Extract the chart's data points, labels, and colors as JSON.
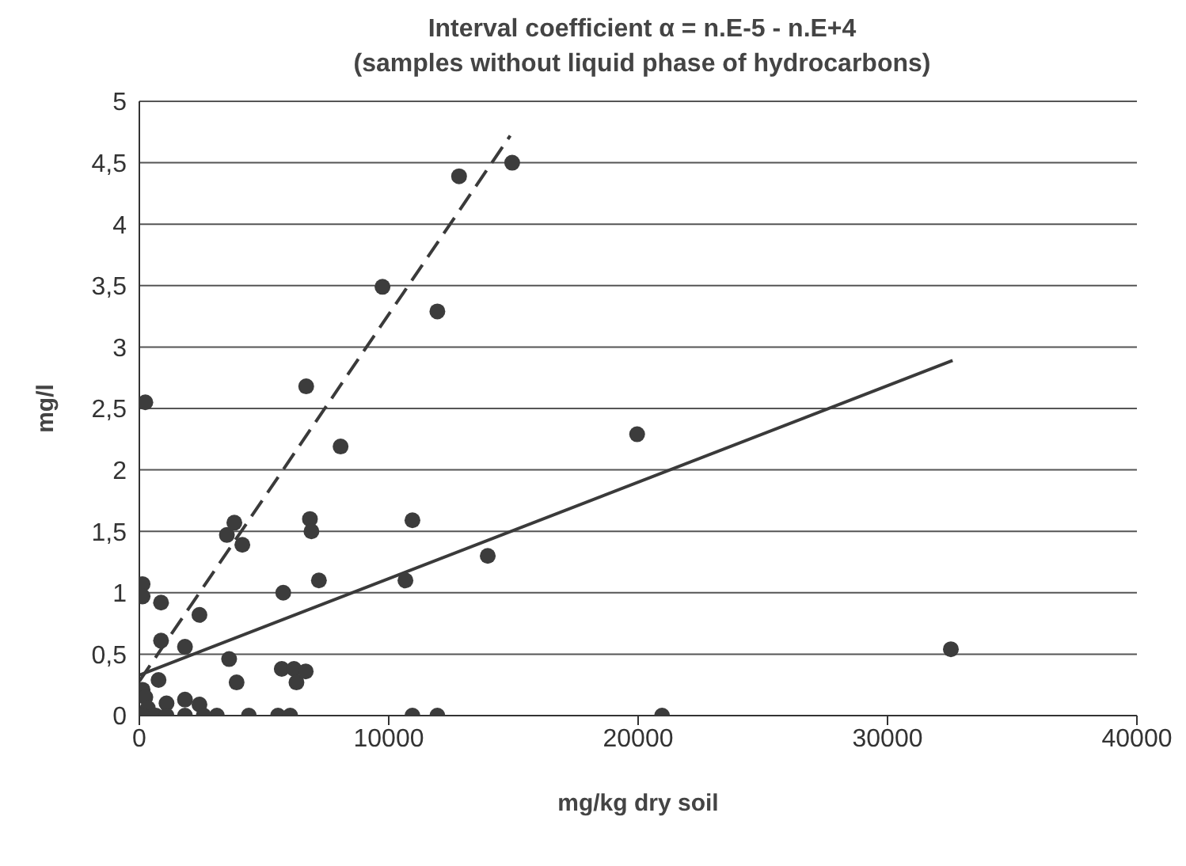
{
  "chart_data": {
    "type": "scatter",
    "title": "Interval coefficient α = n.E-5  - n.E+4",
    "subtitle": "(samples without liquid phase of hydrocarbons)",
    "xlabel": "mg/kg dry soil",
    "ylabel": "mg/l",
    "xlim": [
      0,
      40000
    ],
    "xticks": [
      0,
      10000,
      20000,
      30000,
      40000
    ],
    "ylim": [
      0,
      5
    ],
    "yticks": [
      0,
      {
        "value": 0.5,
        "label": "0,5"
      },
      1,
      {
        "value": 1.5,
        "label": "1,5"
      },
      2,
      {
        "value": 2.5,
        "label": "2,5"
      },
      3,
      {
        "value": 3.5,
        "label": "3,5"
      },
      4,
      {
        "value": 4.5,
        "label": "4,5"
      },
      5
    ],
    "grid": "y",
    "marker": "circle",
    "series": [
      {
        "color": "#3c3c3c",
        "x": [
          240,
          130,
          130,
          870,
          870,
          770,
          1830,
          2410,
          3600,
          3900,
          3510,
          3810,
          4130,
          5770,
          5710,
          6200,
          6300,
          6670,
          6690,
          6840,
          6900,
          7200,
          8070,
          9750,
          11950,
          12820,
          14950,
          10950,
          10670,
          13970,
          19960,
          32540,
          20960,
          10950,
          11950,
          3110,
          4390,
          5560,
          6050,
          130,
          240,
          340,
          660,
          1090,
          1090,
          1830,
          1830,
          2410,
          2580,
          130
        ],
        "values": [
          2.55,
          1.07,
          0.97,
          0.92,
          0.61,
          0.29,
          0.56,
          0.82,
          0.46,
          0.27,
          1.47,
          1.57,
          1.39,
          1.0,
          0.38,
          0.38,
          0.27,
          0.36,
          2.68,
          1.6,
          1.5,
          1.1,
          2.19,
          3.49,
          3.29,
          4.39,
          4.5,
          1.59,
          1.1,
          1.3,
          2.29,
          0.54,
          0,
          0,
          0,
          0,
          0,
          0,
          0,
          0.21,
          0.15,
          0.06,
          0,
          0.1,
          0,
          0.13,
          0,
          0.09,
          0,
          0
        ]
      },
      {
        "type": "line",
        "color": "#3a3a3a",
        "line_style": "dashed",
        "marker": "none",
        "x": [
          0,
          14870
        ],
        "values": [
          0.28,
          4.72
        ]
      },
      {
        "type": "line",
        "color": "#3a3a3a",
        "line_style": "solid",
        "marker": "none",
        "x": [
          0,
          32610
        ],
        "values": [
          0.33,
          2.89
        ]
      }
    ]
  }
}
